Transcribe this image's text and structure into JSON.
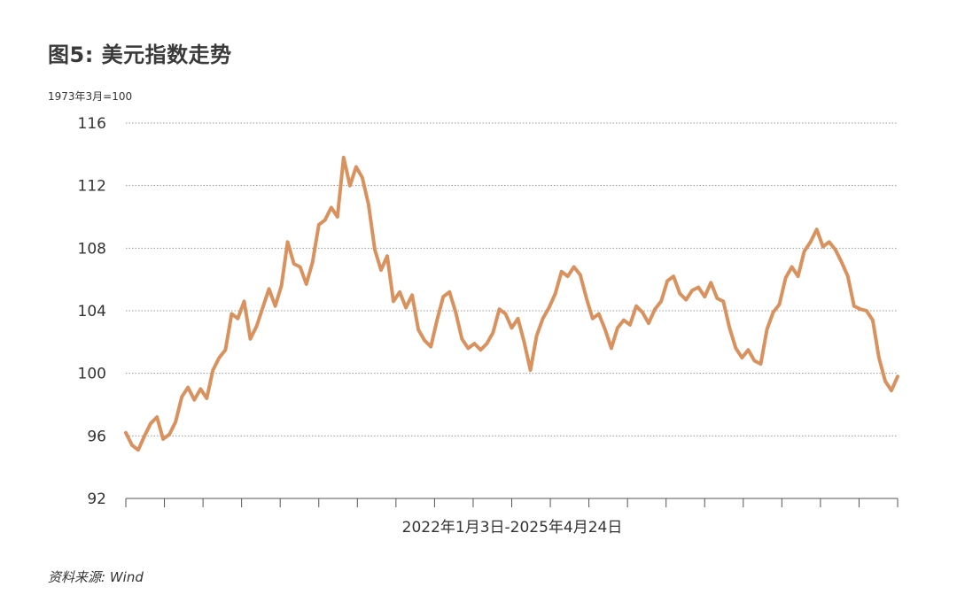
{
  "page": {
    "title": "图5: 美元指数走势",
    "unit_label": "1973年3月=100",
    "source": "资料来源: Wind"
  },
  "chart_data": {
    "type": "line",
    "title": "图5: 美元指数走势",
    "xlabel": "2022年1月3日-2025年4月24日",
    "ylabel": "1973年3月=100",
    "ylim": [
      92,
      116
    ],
    "yticks": [
      92,
      96,
      100,
      104,
      108,
      112,
      116
    ],
    "x_tick_count": 21,
    "grid": "horizontal-dotted",
    "legend": "none",
    "colors": {
      "line": "#D9925E",
      "grid": "#9a9a9a",
      "axis": "#555555"
    },
    "series": [
      {
        "values": [
          96.2,
          95.4,
          95.1,
          96.0,
          96.8,
          97.2,
          95.8,
          96.1,
          96.9,
          98.5,
          99.1,
          98.3,
          99.0,
          98.4,
          100.2,
          101.0,
          101.5,
          103.8,
          103.5,
          104.6,
          102.2,
          103.0,
          104.2,
          105.4,
          104.3,
          105.6,
          108.4,
          107.0,
          106.8,
          105.7,
          107.1,
          109.5,
          109.8,
          110.6,
          110.0,
          113.8,
          112.0,
          113.2,
          112.5,
          110.8,
          107.9,
          106.6,
          107.5,
          104.6,
          105.2,
          104.2,
          105.0,
          102.8,
          102.1,
          101.7,
          103.4,
          104.9,
          105.2,
          103.9,
          102.2,
          101.6,
          101.9,
          101.5,
          101.9,
          102.6,
          104.1,
          103.8,
          102.9,
          103.5,
          102.0,
          100.2,
          102.4,
          103.5,
          104.2,
          105.1,
          106.5,
          106.2,
          106.8,
          106.3,
          104.8,
          103.5,
          103.8,
          102.8,
          101.6,
          102.9,
          103.4,
          103.1,
          104.3,
          103.9,
          103.2,
          104.1,
          104.6,
          105.9,
          106.2,
          105.1,
          104.7,
          105.3,
          105.5,
          104.9,
          105.8,
          104.8,
          104.6,
          102.9,
          101.6,
          101.0,
          101.5,
          100.8,
          100.6,
          102.8,
          103.9,
          104.4,
          106.1,
          106.8,
          106.2,
          107.8,
          108.4,
          109.2,
          108.1,
          108.4,
          107.9,
          107.1,
          106.2,
          104.3,
          104.1,
          104.0,
          103.4,
          101.0,
          99.5,
          98.9,
          99.8
        ]
      }
    ]
  }
}
